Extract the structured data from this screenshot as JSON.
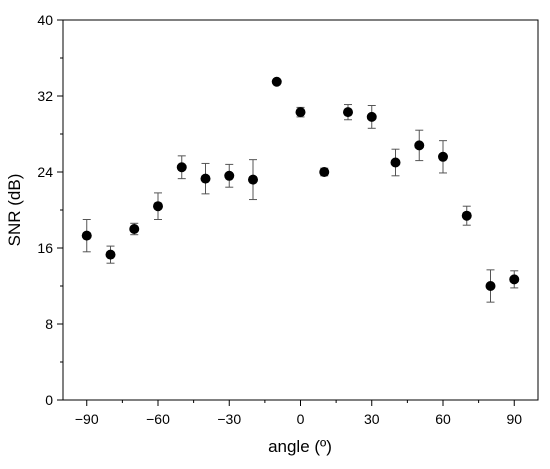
{
  "chart_data": {
    "type": "scatter",
    "title": "",
    "xlabel": "angle (º)",
    "ylabel": "SNR (dB)",
    "xlim": [
      -100,
      100
    ],
    "ylim": [
      0,
      40
    ],
    "xticks": [
      -90,
      -60,
      -30,
      0,
      30,
      60,
      90
    ],
    "yticks": [
      0,
      8,
      16,
      24,
      32,
      40
    ],
    "xtick_labels": [
      "−90",
      "−60",
      "−30",
      "0",
      "30",
      "60",
      "90"
    ],
    "ytick_labels": [
      "0",
      "8",
      "16",
      "24",
      "32",
      "40"
    ],
    "grid": false,
    "series": [
      {
        "marker": "filled-circle",
        "color": "#000000",
        "points": [
          {
            "x": -90,
            "y": 17.3,
            "err": 1.7
          },
          {
            "x": -80,
            "y": 15.3,
            "err": 0.9
          },
          {
            "x": -70,
            "y": 18.0,
            "err": 0.6
          },
          {
            "x": -60,
            "y": 20.4,
            "err": 1.4
          },
          {
            "x": -50,
            "y": 24.5,
            "err": 1.2
          },
          {
            "x": -40,
            "y": 23.3,
            "err": 1.6
          },
          {
            "x": -30,
            "y": 23.6,
            "err": 1.2
          },
          {
            "x": -20,
            "y": 23.2,
            "err": 2.1
          },
          {
            "x": -10,
            "y": 33.5,
            "err": 0.1
          },
          {
            "x": 0,
            "y": 30.3,
            "err": 0.5
          },
          {
            "x": 10,
            "y": 24.0,
            "err": 0.4
          },
          {
            "x": 20,
            "y": 30.3,
            "err": 0.8
          },
          {
            "x": 30,
            "y": 29.8,
            "err": 1.2
          },
          {
            "x": 40,
            "y": 25.0,
            "err": 1.4
          },
          {
            "x": 50,
            "y": 26.8,
            "err": 1.6
          },
          {
            "x": 60,
            "y": 25.6,
            "err": 1.7
          },
          {
            "x": 70,
            "y": 19.4,
            "err": 1.0
          },
          {
            "x": 80,
            "y": 12.0,
            "err": 1.7
          },
          {
            "x": 90,
            "y": 12.7,
            "err": 0.9
          }
        ]
      }
    ]
  }
}
